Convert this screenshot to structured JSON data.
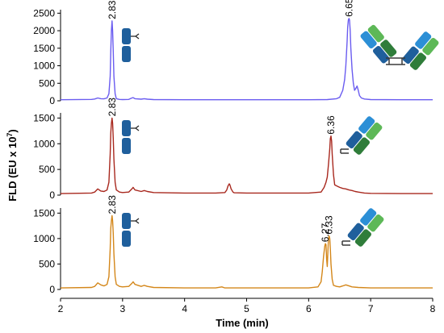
{
  "chart_data": [
    {
      "type": "line",
      "series": [
        {
          "color": "#6a5cf0",
          "x": [
            2.0,
            2.5,
            2.55,
            2.6,
            2.65,
            2.7,
            2.75,
            2.78,
            2.8,
            2.81,
            2.82,
            2.83,
            2.84,
            2.85,
            2.86,
            2.88,
            2.9,
            2.95,
            3.0,
            3.1,
            3.15,
            3.17,
            3.2,
            3.3,
            3.35,
            3.4,
            3.5,
            4.0,
            4.5,
            5.0,
            5.5,
            6.0,
            6.3,
            6.45,
            6.5,
            6.55,
            6.58,
            6.6,
            6.62,
            6.63,
            6.64,
            6.65,
            6.66,
            6.67,
            6.68,
            6.7,
            6.72,
            6.74,
            6.76,
            6.78,
            6.8,
            6.82,
            6.85,
            6.9,
            7.0,
            7.5,
            8.0
          ],
          "y": [
            30,
            40,
            50,
            80,
            60,
            55,
            80,
            200,
            700,
            1400,
            2000,
            2280,
            2000,
            1400,
            700,
            200,
            60,
            40,
            35,
            40,
            80,
            90,
            60,
            45,
            60,
            45,
            35,
            30,
            30,
            30,
            30,
            30,
            35,
            60,
            100,
            300,
            600,
            1000,
            1700,
            2100,
            2300,
            2350,
            2300,
            2000,
            1500,
            900,
            500,
            300,
            350,
            420,
            300,
            150,
            80,
            50,
            35,
            30,
            30
          ]
        }
      ],
      "ylim": [
        0,
        2600
      ],
      "yticks": [
        "0",
        "500",
        "1000",
        "1500",
        "2000",
        "2500"
      ],
      "peak_labels": [
        "2.83",
        "6.65"
      ]
    },
    {
      "type": "line",
      "series": [
        {
          "color": "#a8281e",
          "x": [
            2.0,
            2.5,
            2.55,
            2.6,
            2.65,
            2.7,
            2.75,
            2.78,
            2.8,
            2.81,
            2.82,
            2.83,
            2.84,
            2.85,
            2.86,
            2.88,
            2.9,
            2.95,
            3.0,
            3.1,
            3.15,
            3.17,
            3.2,
            3.3,
            3.35,
            3.4,
            3.5,
            4.0,
            4.5,
            4.65,
            4.68,
            4.7,
            4.72,
            4.73,
            4.75,
            4.78,
            4.8,
            5.0,
            5.5,
            6.0,
            6.2,
            6.25,
            6.28,
            6.3,
            6.32,
            6.34,
            6.35,
            6.36,
            6.37,
            6.38,
            6.4,
            6.42,
            6.45,
            6.5,
            6.55,
            6.6,
            6.65,
            6.7,
            6.75,
            6.8,
            6.9,
            7.0,
            7.5,
            8.0
          ],
          "y": [
            30,
            40,
            60,
            120,
            80,
            70,
            100,
            250,
            800,
            1200,
            1400,
            1500,
            1400,
            1100,
            700,
            250,
            100,
            60,
            50,
            60,
            120,
            150,
            100,
            70,
            90,
            70,
            50,
            40,
            40,
            50,
            100,
            180,
            220,
            200,
            120,
            60,
            45,
            40,
            40,
            40,
            60,
            150,
            250,
            350,
            600,
            900,
            1100,
            1150,
            1050,
            800,
            400,
            200,
            180,
            150,
            130,
            120,
            100,
            90,
            70,
            60,
            40,
            35,
            30,
            30
          ]
        }
      ],
      "ylim": [
        0,
        1600
      ],
      "yticks": [
        "0",
        "500",
        "1000",
        "1500"
      ],
      "peak_labels": [
        "2.83",
        "6.36"
      ]
    },
    {
      "type": "line",
      "series": [
        {
          "color": "#d4871a",
          "x": [
            2.0,
            2.5,
            2.55,
            2.6,
            2.65,
            2.7,
            2.75,
            2.78,
            2.8,
            2.81,
            2.82,
            2.83,
            2.84,
            2.85,
            2.86,
            2.88,
            2.9,
            2.95,
            3.0,
            3.1,
            3.15,
            3.17,
            3.2,
            3.3,
            3.35,
            3.4,
            3.5,
            4.0,
            4.5,
            4.6,
            4.65,
            5.0,
            5.5,
            6.0,
            6.15,
            6.2,
            6.22,
            6.24,
            6.26,
            6.27,
            6.28,
            6.29,
            6.3,
            6.31,
            6.32,
            6.33,
            6.34,
            6.35,
            6.36,
            6.38,
            6.4,
            6.45,
            6.5,
            6.55,
            6.6,
            6.65,
            6.7,
            6.8,
            7.0,
            7.5,
            8.0
          ],
          "y": [
            30,
            40,
            60,
            130,
            90,
            70,
            100,
            250,
            800,
            1200,
            1350,
            1450,
            1350,
            1100,
            700,
            250,
            100,
            60,
            50,
            60,
            120,
            150,
            100,
            60,
            80,
            60,
            40,
            30,
            30,
            50,
            30,
            30,
            30,
            30,
            50,
            150,
            350,
            650,
            850,
            900,
            880,
            600,
            450,
            750,
            1000,
            1050,
            1000,
            800,
            500,
            200,
            80,
            60,
            50,
            70,
            90,
            70,
            50,
            40,
            30,
            30,
            30
          ]
        }
      ],
      "ylim": [
        0,
        1600
      ],
      "yticks": [
        "0",
        "500",
        "1000",
        "1500"
      ],
      "peak_labels": [
        "2.83",
        "6.27",
        "6.33"
      ]
    }
  ],
  "xaxis": {
    "title": "Time (min)",
    "xlim": [
      2,
      8
    ],
    "ticks": [
      "2",
      "3",
      "4",
      "5",
      "6",
      "7",
      "8"
    ]
  },
  "yaxis": {
    "title_main": "FLD (EU x 10",
    "title_sup": "7",
    "title_close": ")"
  },
  "colors": {
    "antibody_dark": "#1f5f9c",
    "antibody_light": "#2c8fd6",
    "antibody_green_dark": "#2f7d3a",
    "antibody_green_light": "#5db857",
    "linker": "#3a3a3a"
  },
  "icons": {
    "glycan": "glycan-stack-icon",
    "antibody": "antibody-icon"
  }
}
